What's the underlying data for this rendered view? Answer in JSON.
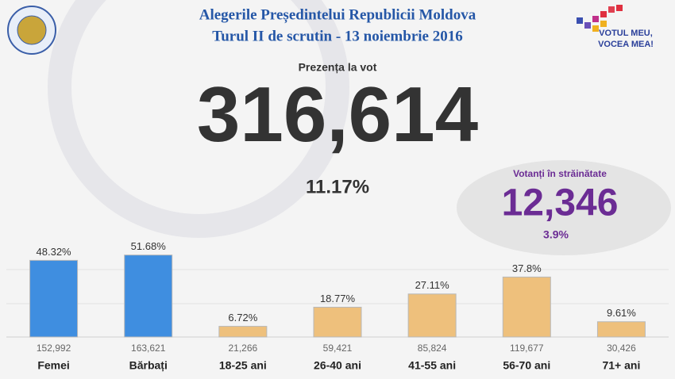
{
  "header": {
    "title": "Alegerile Președintelui Republicii Moldova",
    "subtitle": "Turul II de scrutin - 13 noiembrie 2016",
    "logo_text": [
      "VOTUL MEU,",
      "VOCEA MEA!"
    ]
  },
  "turnout": {
    "label": "Prezența la vot",
    "total": "316,614",
    "percent": "11.17%"
  },
  "abroad": {
    "label": "Votanți în străinătate",
    "total": "12,346",
    "percent": "3.9%"
  },
  "chart_data": {
    "type": "bar",
    "categories": [
      "Femei",
      "Bărbați",
      "18-25 ani",
      "26-40 ani",
      "41-55 ani",
      "56-70 ani",
      "71+ ani"
    ],
    "values": [
      48.32,
      51.68,
      6.72,
      18.77,
      27.11,
      37.8,
      9.61
    ],
    "value_labels": [
      "48.32%",
      "51.68%",
      "6.72%",
      "18.77%",
      "27.11%",
      "37.8%",
      "9.61%"
    ],
    "counts": [
      "152,992",
      "163,621",
      "21,266",
      "59,421",
      "85,824",
      "119,677",
      "30,426"
    ],
    "colors": [
      "#3f8ee0",
      "#3f8ee0",
      "#eec07c",
      "#eec07c",
      "#eec07c",
      "#eec07c",
      "#eec07c"
    ],
    "ylim": [
      0,
      60
    ]
  }
}
